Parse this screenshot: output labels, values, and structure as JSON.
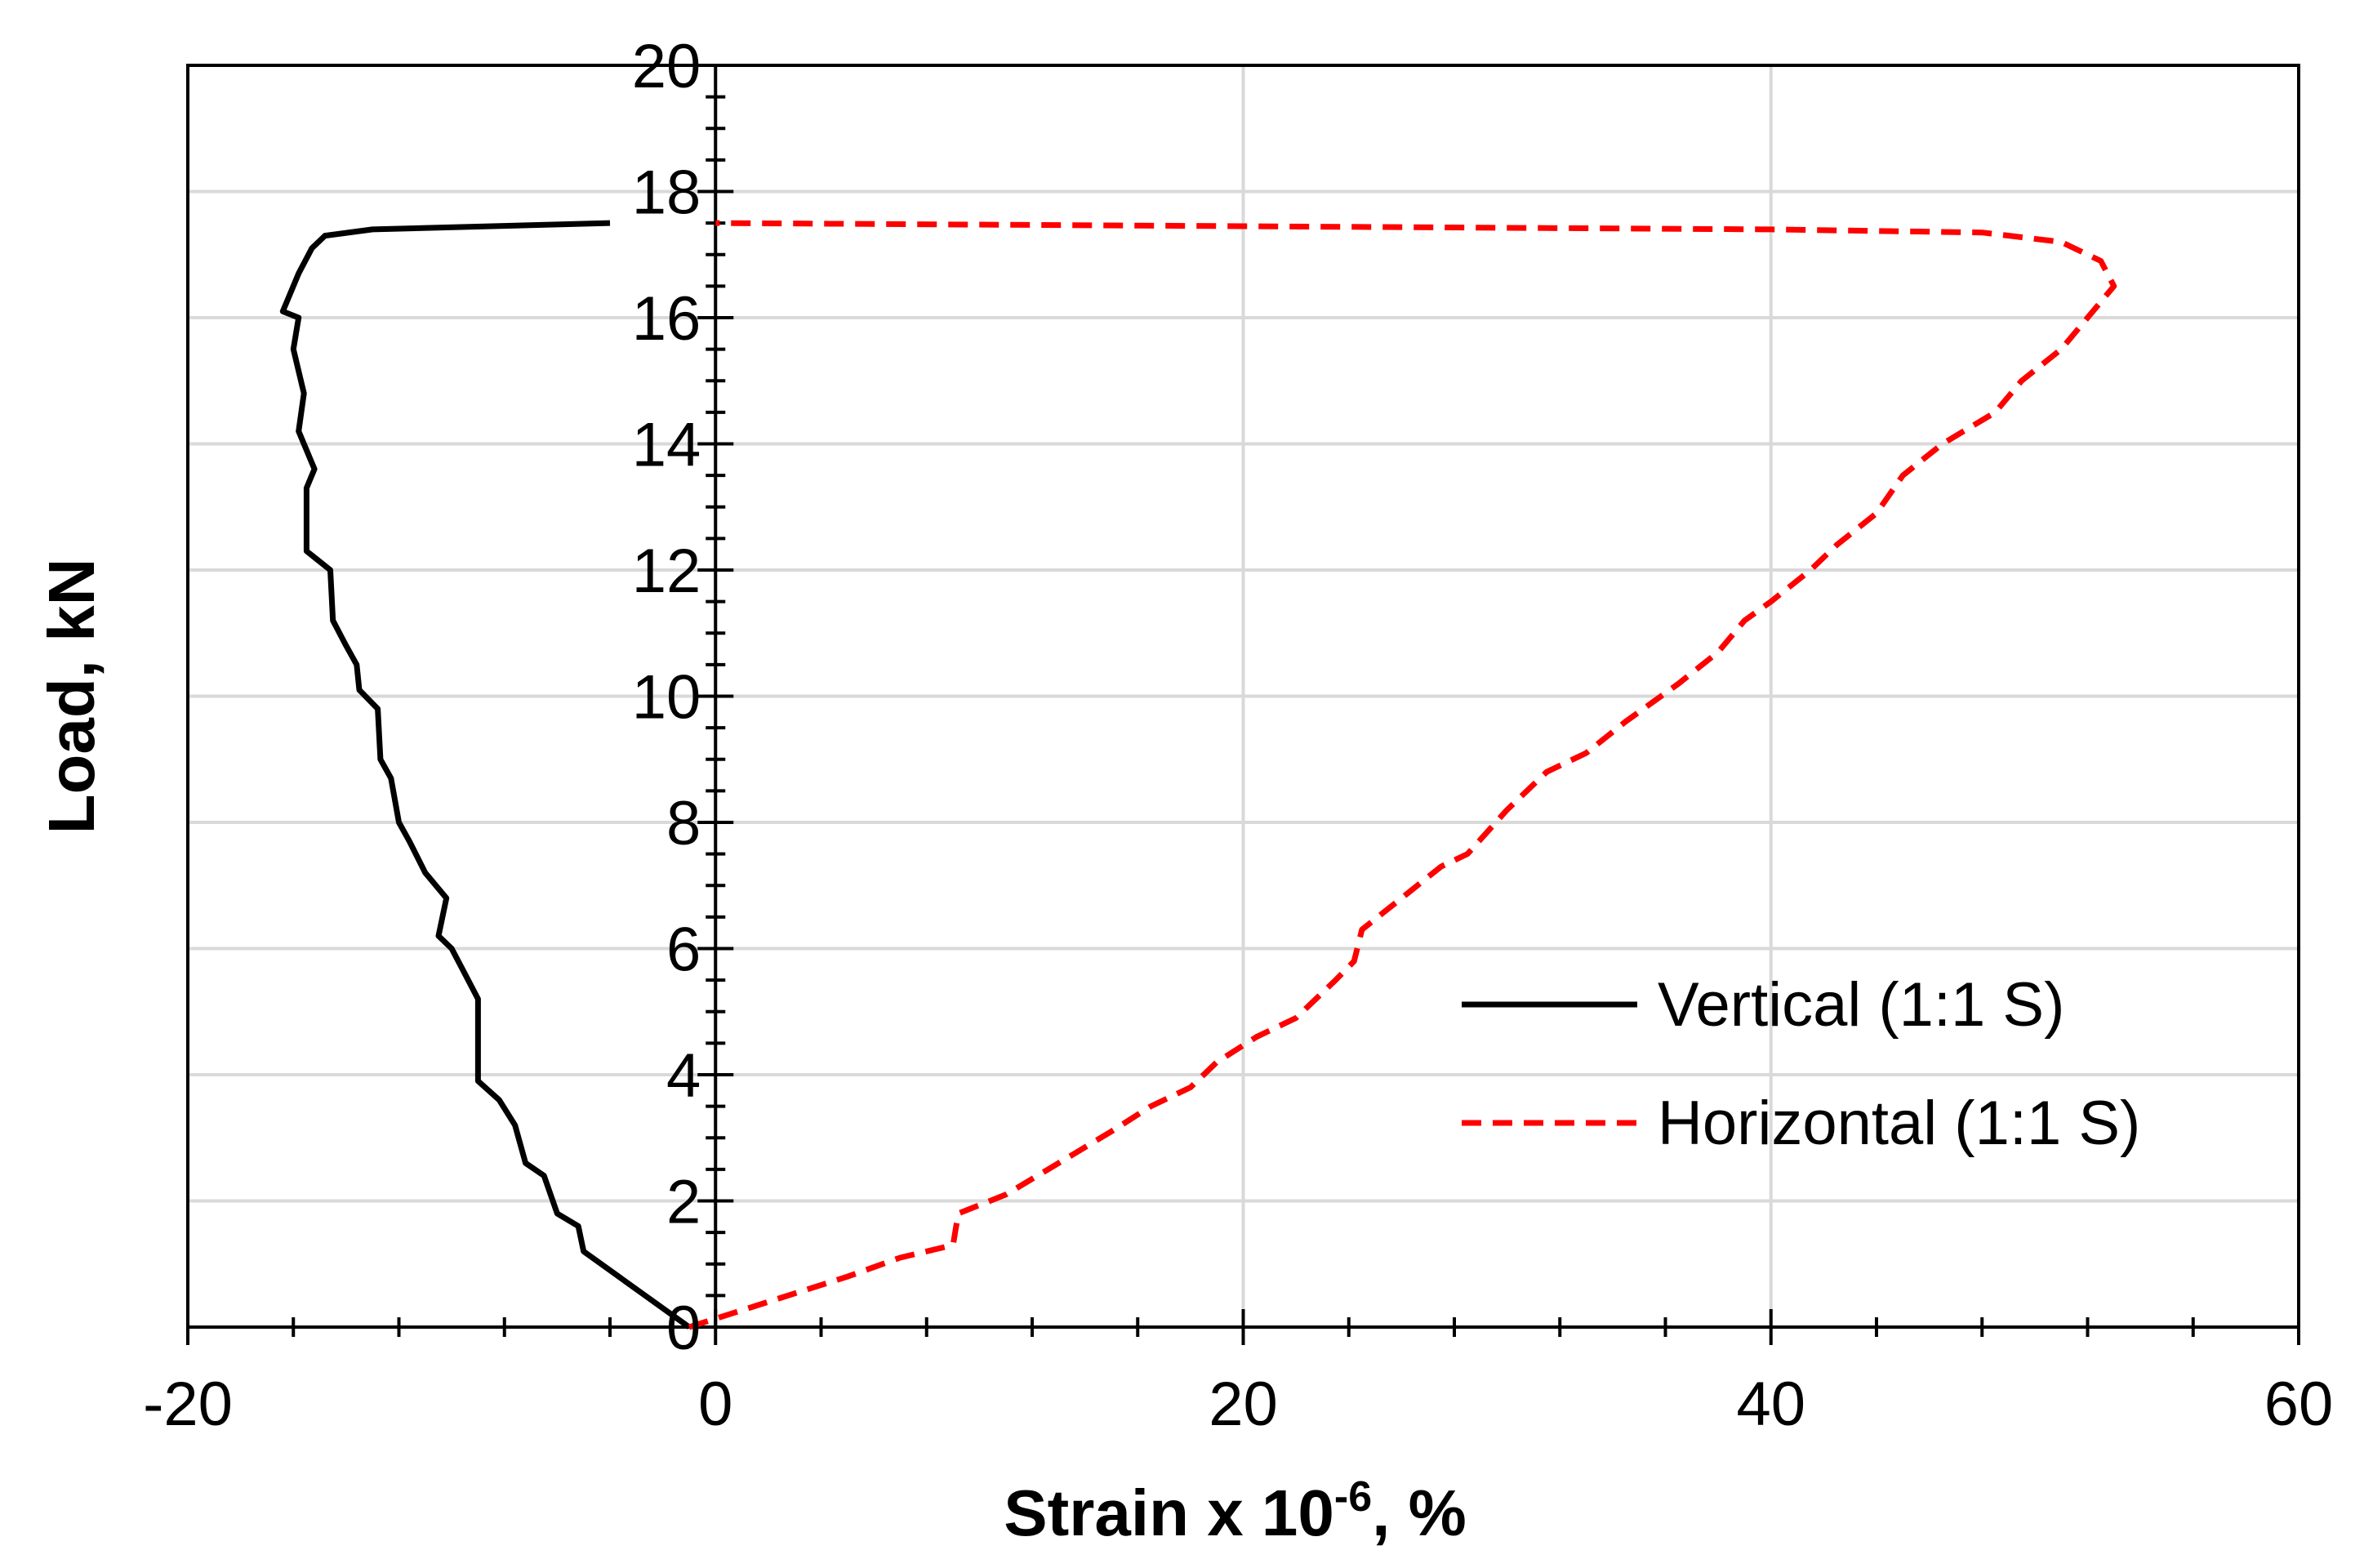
{
  "chart_data": {
    "type": "line",
    "title": "",
    "xlabel": "Strain x 10",
    "xlabel_exponent": "-6",
    "xlabel_suffix": ", %",
    "ylabel": "Load, kN",
    "xlim": [
      -20,
      60
    ],
    "ylim": [
      0,
      20
    ],
    "x_ticks": [
      "-20",
      "0",
      "20",
      "40",
      "60"
    ],
    "y_ticks": [
      "0",
      "2",
      "4",
      "6",
      "8",
      "10",
      "12",
      "14",
      "16",
      "18",
      "20"
    ],
    "grid": true,
    "legend_position": "bottom-right",
    "series": [
      {
        "name": "Vertical (1:1 S)",
        "color": "#000000",
        "style": "solid",
        "points": [
          [
            -1,
            0
          ],
          [
            -3,
            0.6
          ],
          [
            -5,
            1.2
          ],
          [
            -5.2,
            1.6
          ],
          [
            -6,
            1.8
          ],
          [
            -6.5,
            2.4
          ],
          [
            -7.2,
            2.6
          ],
          [
            -7.6,
            3.2
          ],
          [
            -8.2,
            3.6
          ],
          [
            -9,
            3.9
          ],
          [
            -9,
            5.2
          ],
          [
            -9.5,
            5.6
          ],
          [
            -10,
            6
          ],
          [
            -10.5,
            6.2
          ],
          [
            -10.2,
            6.8
          ],
          [
            -11,
            7.2
          ],
          [
            -11.6,
            7.7
          ],
          [
            -12,
            8
          ],
          [
            -12.3,
            8.7
          ],
          [
            -12.7,
            9.0
          ],
          [
            -12.8,
            9.8
          ],
          [
            -13.5,
            10.1
          ],
          [
            -13.6,
            10.5
          ],
          [
            -14,
            10.8
          ],
          [
            -14.5,
            11.2
          ],
          [
            -14.6,
            12
          ],
          [
            -15.5,
            12.3
          ],
          [
            -15.5,
            13.3
          ],
          [
            -15.2,
            13.6
          ],
          [
            -15.8,
            14.2
          ],
          [
            -15.6,
            14.8
          ],
          [
            -16,
            15.5
          ],
          [
            -15.8,
            16
          ],
          [
            -16.4,
            16.1
          ],
          [
            -15.8,
            16.7
          ],
          [
            -15.3,
            17.1
          ],
          [
            -14.8,
            17.3
          ],
          [
            -13,
            17.4
          ],
          [
            -4,
            17.5
          ]
        ]
      },
      {
        "name": "Horizontal (1:1 S)",
        "color": "#ff0000",
        "style": "dashed",
        "points": [
          [
            -1,
            0
          ],
          [
            2,
            0.4
          ],
          [
            5,
            0.8
          ],
          [
            7,
            1.1
          ],
          [
            9,
            1.3
          ],
          [
            9.2,
            1.8
          ],
          [
            11,
            2.1
          ],
          [
            13,
            2.6
          ],
          [
            15,
            3.1
          ],
          [
            16.5,
            3.5
          ],
          [
            18,
            3.8
          ],
          [
            19,
            4.2
          ],
          [
            20.5,
            4.6
          ],
          [
            22,
            4.9
          ],
          [
            23.5,
            5.5
          ],
          [
            24.2,
            5.8
          ],
          [
            24.5,
            6.3
          ],
          [
            26,
            6.8
          ],
          [
            27.5,
            7.3
          ],
          [
            28.5,
            7.5
          ],
          [
            30,
            8.2
          ],
          [
            31.5,
            8.8
          ],
          [
            33,
            9.1
          ],
          [
            34.5,
            9.6
          ],
          [
            36.5,
            10.2
          ],
          [
            38,
            10.7
          ],
          [
            39,
            11.2
          ],
          [
            40,
            11.5
          ],
          [
            41.5,
            12
          ],
          [
            42.5,
            12.4
          ],
          [
            44,
            12.9
          ],
          [
            45,
            13.5
          ],
          [
            46.5,
            14
          ],
          [
            48.5,
            14.5
          ],
          [
            49.5,
            15
          ],
          [
            51,
            15.5
          ],
          [
            52,
            16
          ],
          [
            53,
            16.5
          ],
          [
            52.5,
            16.9
          ],
          [
            51,
            17.2
          ],
          [
            48,
            17.35
          ],
          [
            40,
            17.4
          ],
          [
            20,
            17.45
          ],
          [
            0,
            17.5
          ]
        ]
      }
    ]
  }
}
